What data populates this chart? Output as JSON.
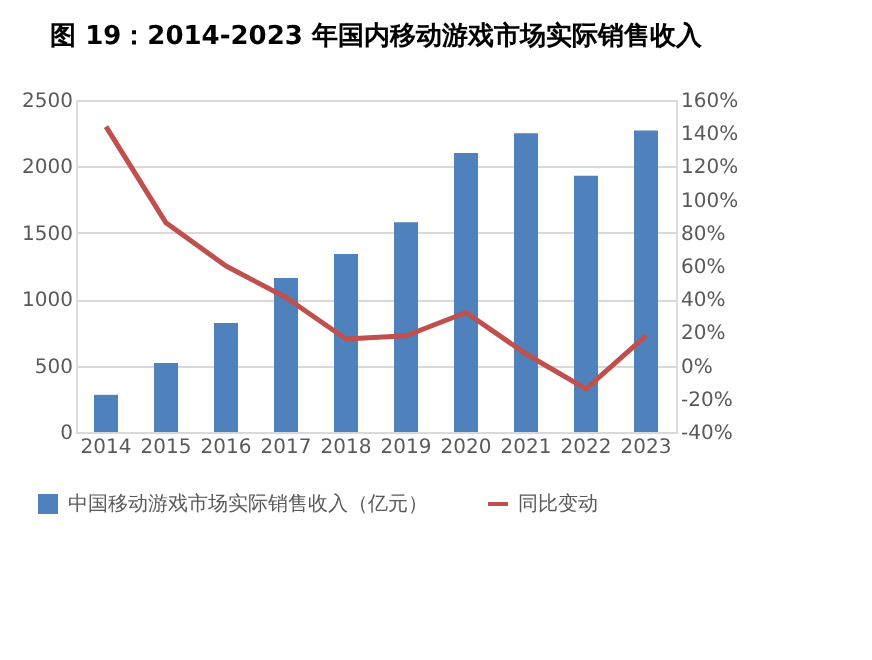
{
  "chart_data": {
    "type": "bar",
    "title": "图 19：2014-2023 年国内移动游戏市场实际销售收入",
    "categories": [
      "2014",
      "2015",
      "2016",
      "2017",
      "2018",
      "2019",
      "2020",
      "2021",
      "2022",
      "2023"
    ],
    "series": [
      {
        "name": "中国移动游戏市场实际销售收入（亿元）",
        "color": "#4f81bd",
        "values": [
          280,
          520,
          820,
          1160,
          1340,
          1580,
          2100,
          2250,
          1930,
          2270
        ]
      },
      {
        "name": "同比变动",
        "type": "line",
        "axis": "y2",
        "color": "#c0504d",
        "values": [
          144,
          86,
          60,
          41,
          16,
          18,
          32,
          7,
          -14,
          18
        ]
      }
    ],
    "ylim": [
      0,
      2500
    ],
    "yticks": [
      0,
      500,
      1000,
      1500,
      2000,
      2500
    ],
    "y2lim": [
      -40,
      160
    ],
    "y2ticks": [
      {
        "value": -40,
        "label": "-40%"
      },
      {
        "value": -20,
        "label": "-20%"
      },
      {
        "value": 0,
        "label": "0%"
      },
      {
        "value": 20,
        "label": "20%"
      },
      {
        "value": 40,
        "label": "40%"
      },
      {
        "value": 60,
        "label": "60%"
      },
      {
        "value": 80,
        "label": "80%"
      },
      {
        "value": 100,
        "label": "100%"
      },
      {
        "value": 120,
        "label": "120%"
      },
      {
        "value": 140,
        "label": "140%"
      },
      {
        "value": 160,
        "label": "160%"
      }
    ],
    "grid": "y",
    "legend": "bottom",
    "marker": "none",
    "line_style": "solid"
  }
}
